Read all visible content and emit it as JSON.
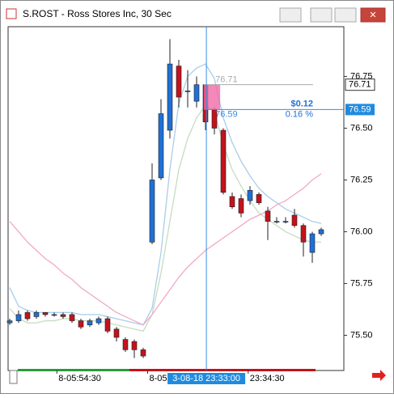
{
  "window": {
    "title": "S.ROST - Ross Stores Inc, 30 Sec"
  },
  "chart_data": {
    "type": "candlestick",
    "open": [
      75.56,
      75.57,
      75.61,
      75.59,
      75.61,
      75.6,
      75.6,
      75.6,
      75.57,
      75.55,
      75.56,
      75.58,
      75.53,
      75.48,
      75.47,
      75.43,
      75.95,
      76.26,
      76.49,
      76.8,
      76.68,
      76.63,
      76.71,
      76.59,
      76.49,
      76.17,
      76.16,
      76.15,
      76.18,
      76.1,
      76.05,
      76.05,
      76.08,
      76.03,
      75.9,
      75.99
    ],
    "high": [
      75.58,
      75.62,
      75.62,
      75.62,
      75.61,
      75.61,
      75.61,
      75.61,
      75.58,
      75.58,
      75.59,
      75.59,
      75.54,
      75.49,
      75.48,
      75.44,
      76.33,
      76.64,
      76.93,
      76.83,
      76.78,
      76.75,
      76.71,
      76.6,
      76.5,
      76.19,
      76.18,
      76.22,
      76.19,
      76.12,
      76.07,
      76.07,
      76.11,
      76.04,
      76.0,
      76.02
    ],
    "low": [
      75.55,
      75.56,
      75.57,
      75.58,
      75.59,
      75.59,
      75.58,
      75.56,
      75.53,
      75.54,
      75.55,
      75.51,
      75.47,
      75.42,
      75.39,
      75.39,
      75.94,
      76.25,
      76.45,
      76.6,
      76.6,
      76.6,
      76.49,
      76.47,
      76.18,
      76.11,
      76.07,
      76.13,
      76.13,
      75.96,
      76.04,
      76.04,
      76.02,
      75.88,
      75.85,
      75.98
    ],
    "close": [
      75.57,
      75.6,
      75.58,
      75.61,
      75.6,
      75.6,
      75.59,
      75.57,
      75.54,
      75.57,
      75.58,
      75.52,
      75.49,
      75.43,
      75.43,
      75.4,
      76.25,
      76.57,
      76.81,
      76.65,
      76.68,
      76.71,
      76.53,
      76.5,
      76.19,
      76.12,
      76.09,
      76.2,
      76.14,
      76.05,
      76.05,
      76.05,
      76.03,
      75.95,
      75.99,
      76.01
    ],
    "up_color": "#1f6fd6",
    "down_color": "#c4121c",
    "lines": [
      {
        "color": "#a9cdea",
        "values": [
          75.73,
          75.64,
          75.62,
          75.61,
          75.61,
          75.61,
          75.61,
          75.61,
          75.6,
          75.6,
          75.6,
          75.59,
          75.58,
          75.57,
          75.56,
          75.55,
          75.63,
          75.9,
          76.3,
          76.62,
          76.75,
          76.79,
          76.81,
          76.74,
          76.55,
          76.43,
          76.34,
          76.27,
          76.21,
          76.17,
          76.14,
          76.11,
          76.09,
          76.07,
          76.05,
          76.04
        ]
      },
      {
        "color": "#c5dcc0",
        "values": [
          75.63,
          75.58,
          75.56,
          75.56,
          75.57,
          75.57,
          75.58,
          75.58,
          75.57,
          75.57,
          75.57,
          75.56,
          75.55,
          75.54,
          75.53,
          75.52,
          75.6,
          75.8,
          76.05,
          76.3,
          76.45,
          76.55,
          76.61,
          76.58,
          76.42,
          76.3,
          76.22,
          76.15,
          76.09,
          76.06,
          76.03,
          76.0,
          75.98,
          75.96,
          75.95,
          75.95
        ]
      },
      {
        "color": "#f2a9c8",
        "values": [
          76.05,
          76.0,
          75.95,
          75.91,
          75.87,
          75.84,
          75.8,
          75.77,
          75.73,
          75.7,
          75.67,
          75.64,
          75.61,
          75.59,
          75.57,
          75.55,
          75.6,
          75.66,
          75.72,
          75.78,
          75.83,
          75.87,
          75.91,
          75.94,
          75.97,
          76.0,
          76.03,
          76.06,
          76.08,
          76.1,
          76.13,
          76.15,
          76.18,
          76.21,
          76.25,
          76.28
        ]
      }
    ],
    "ylim": [
      75.33,
      76.99
    ],
    "yticks": [
      {
        "value": 75.5,
        "label": "75.50"
      },
      75.75,
      {
        "value": 76,
        "label": "76.00"
      },
      76.25,
      {
        "value": 76.5,
        "label": "76.50"
      },
      76.75
    ],
    "xticks": [
      {
        "value": 5.3,
        "label": "8-05:54:30"
      },
      {
        "value": 15.5,
        "label": "8-05"
      },
      {
        "value": 26.8,
        "label": "23:34:30"
      }
    ],
    "crosshair": {
      "value": 22.1,
      "label": "3-08-18 23:33:00"
    },
    "measure": {
      "start": 76.71,
      "end": 76.59,
      "change_label": "$0.12",
      "percent_label": "0.16 %"
    }
  }
}
